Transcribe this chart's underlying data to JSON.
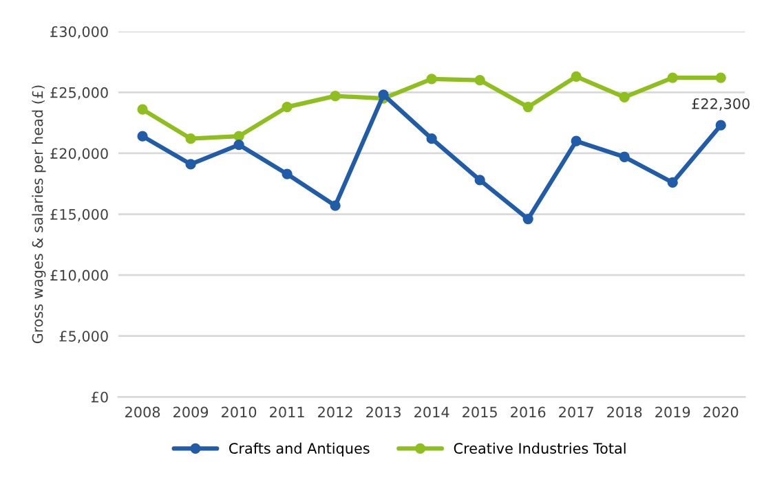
{
  "chart_data": {
    "type": "line",
    "ylabel": "Gross wages & salaries per head (£)",
    "categories": [
      "2008",
      "2009",
      "2010",
      "2011",
      "2012",
      "2013",
      "2014",
      "2015",
      "2016",
      "2017",
      "2018",
      "2019",
      "2020"
    ],
    "series": [
      {
        "name": "Crafts and Antiques",
        "color": "#215ca8",
        "values": [
          21400,
          19100,
          20700,
          18300,
          15700,
          24800,
          21200,
          17800,
          14600,
          21000,
          19700,
          17600,
          22300
        ]
      },
      {
        "name": "Creative Industries Total",
        "color": "#8fbf1f",
        "values": [
          23600,
          21200,
          21400,
          23800,
          24700,
          24500,
          26100,
          26000,
          23800,
          26300,
          24600,
          26200,
          26200
        ]
      }
    ],
    "annotations": [
      {
        "text": "£22,300",
        "x": "2020",
        "y": 22300
      }
    ],
    "ylim": [
      0,
      30000
    ],
    "yticks": [
      {
        "value": 0,
        "label": "£0"
      },
      {
        "value": 5000,
        "label": "£5,000"
      },
      {
        "value": 10000,
        "label": "£10,000"
      },
      {
        "value": 15000,
        "label": "£15,000"
      },
      {
        "value": 20000,
        "label": "£20,000"
      },
      {
        "value": 25000,
        "label": "£25,000"
      },
      {
        "value": 30000,
        "label": "£30,000"
      }
    ],
    "grid": "y",
    "legend": "bottom",
    "marker": "circle",
    "line_style": "solid"
  }
}
